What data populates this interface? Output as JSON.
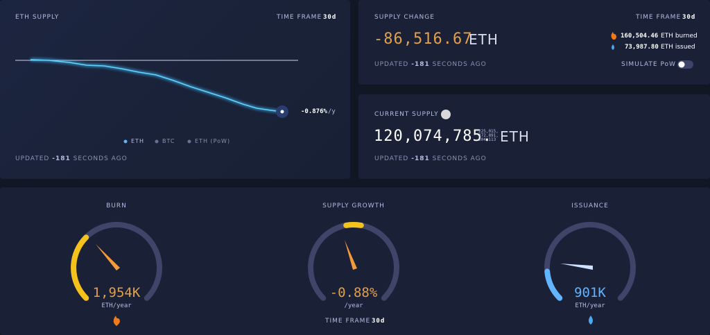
{
  "eth_supply": {
    "title": "ETH SUPPLY",
    "time_frame_label": "TIME FRAME",
    "time_frame": "30d",
    "rate": "-0.876%",
    "rate_unit": "/y",
    "legend": [
      "ETH",
      "BTC",
      "ETH (PoW)"
    ],
    "updated": {
      "prefix": "UPDATED",
      "seconds": "-181",
      "suffix": "SECONDS AGO"
    }
  },
  "supply_change": {
    "title": "SUPPLY CHANGE",
    "time_frame_label": "TIME FRAME",
    "time_frame": "30d",
    "amount": "-86,516.67",
    "unit": "ETH",
    "burned": "160,504.46",
    "burned_label": "ETH burned",
    "issued": "73,987.80",
    "issued_label": "ETH issued",
    "updated": {
      "prefix": "UPDATED",
      "seconds": "-181",
      "suffix": "SECONDS AGO"
    },
    "toggle": "SIMULATE PoW"
  },
  "current_supply": {
    "title": "CURRENT SUPPLY",
    "amount": "120,074,785.",
    "decimals": [
      "225,015,",
      "272,891,",
      "504,113"
    ],
    "unit": "ETH",
    "updated": {
      "prefix": "UPDATED",
      "seconds": "-181",
      "suffix": "SECONDS AGO"
    }
  },
  "gauges": [
    {
      "title": "BURN",
      "value": "1,954K",
      "unit": "ETH/year"
    },
    {
      "title": "SUPPLY GROWTH",
      "value": "-0.88%",
      "unit": "/year",
      "time_frame_label": "TIME FRAME",
      "time_frame": "30d"
    },
    {
      "title": "ISSUANCE",
      "value": "901K",
      "unit": "ETH/year"
    }
  ]
}
